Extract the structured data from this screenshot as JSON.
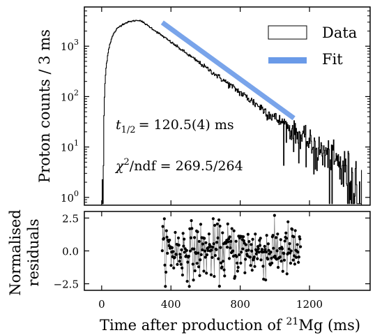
{
  "chart_data": [
    {
      "type": "line",
      "panel": "main",
      "y_scale": "log",
      "xlim": [
        -100,
        1550
      ],
      "ylim": [
        0.7,
        6000
      ],
      "ylabel": "Proton counts / 3 ms",
      "y_ticks": [
        {
          "value": 1,
          "base": "10",
          "exp": "0"
        },
        {
          "value": 10,
          "base": "10",
          "exp": "1"
        },
        {
          "value": 100,
          "base": "10",
          "exp": "2"
        },
        {
          "value": 1000,
          "base": "10",
          "exp": "3"
        }
      ],
      "legend": {
        "placement": "top-right",
        "entries": [
          "Data",
          "Fit"
        ]
      },
      "annotations": {
        "half_life_symbol": "t",
        "half_life_sub": "1/2",
        "half_life_text": "= 120.5(4) ms",
        "chi_symbol": "χ",
        "chi_sup": "2",
        "chi_text": "/ndf = 269.5/264"
      },
      "series": [
        {
          "name": "Data",
          "style": "step",
          "color": "#000000",
          "x_start": 0,
          "x_end": 1500,
          "bin_width": 3,
          "shape": {
            "rise_ms": 10,
            "peak_time_ms": 220,
            "peak_counts": 3400,
            "early_counts": 1.0,
            "onset_ms": 10
          }
        },
        {
          "name": "Fit",
          "style": "line",
          "color": "#6a9ae8",
          "x_start": 350,
          "x_end": 1110,
          "half_life_ms": 120.5,
          "amplitude_at_start": 2950
        }
      ]
    },
    {
      "type": "scatter",
      "panel": "residuals",
      "xlim": [
        -100,
        1550
      ],
      "ylim": [
        -3.0,
        3.0
      ],
      "xlabel_prefix": "Time after production of ",
      "xlabel_sup": "21",
      "xlabel_suffix": "Mg (ms)",
      "ylabel_lines": [
        "Normalised",
        "residuals"
      ],
      "x_ticks": [
        "0",
        "400",
        "800",
        "1200"
      ],
      "x_tick_values": [
        0,
        400,
        800,
        1200
      ],
      "y_ticks": [
        "2.5",
        "0.0",
        "−2.5"
      ],
      "y_tick_values": [
        2.5,
        0.0,
        -2.5
      ],
      "series": [
        {
          "name": "Residuals",
          "color": "#000000",
          "x_start": 350,
          "x_end": 1150,
          "bin_width": 3
        }
      ]
    }
  ]
}
